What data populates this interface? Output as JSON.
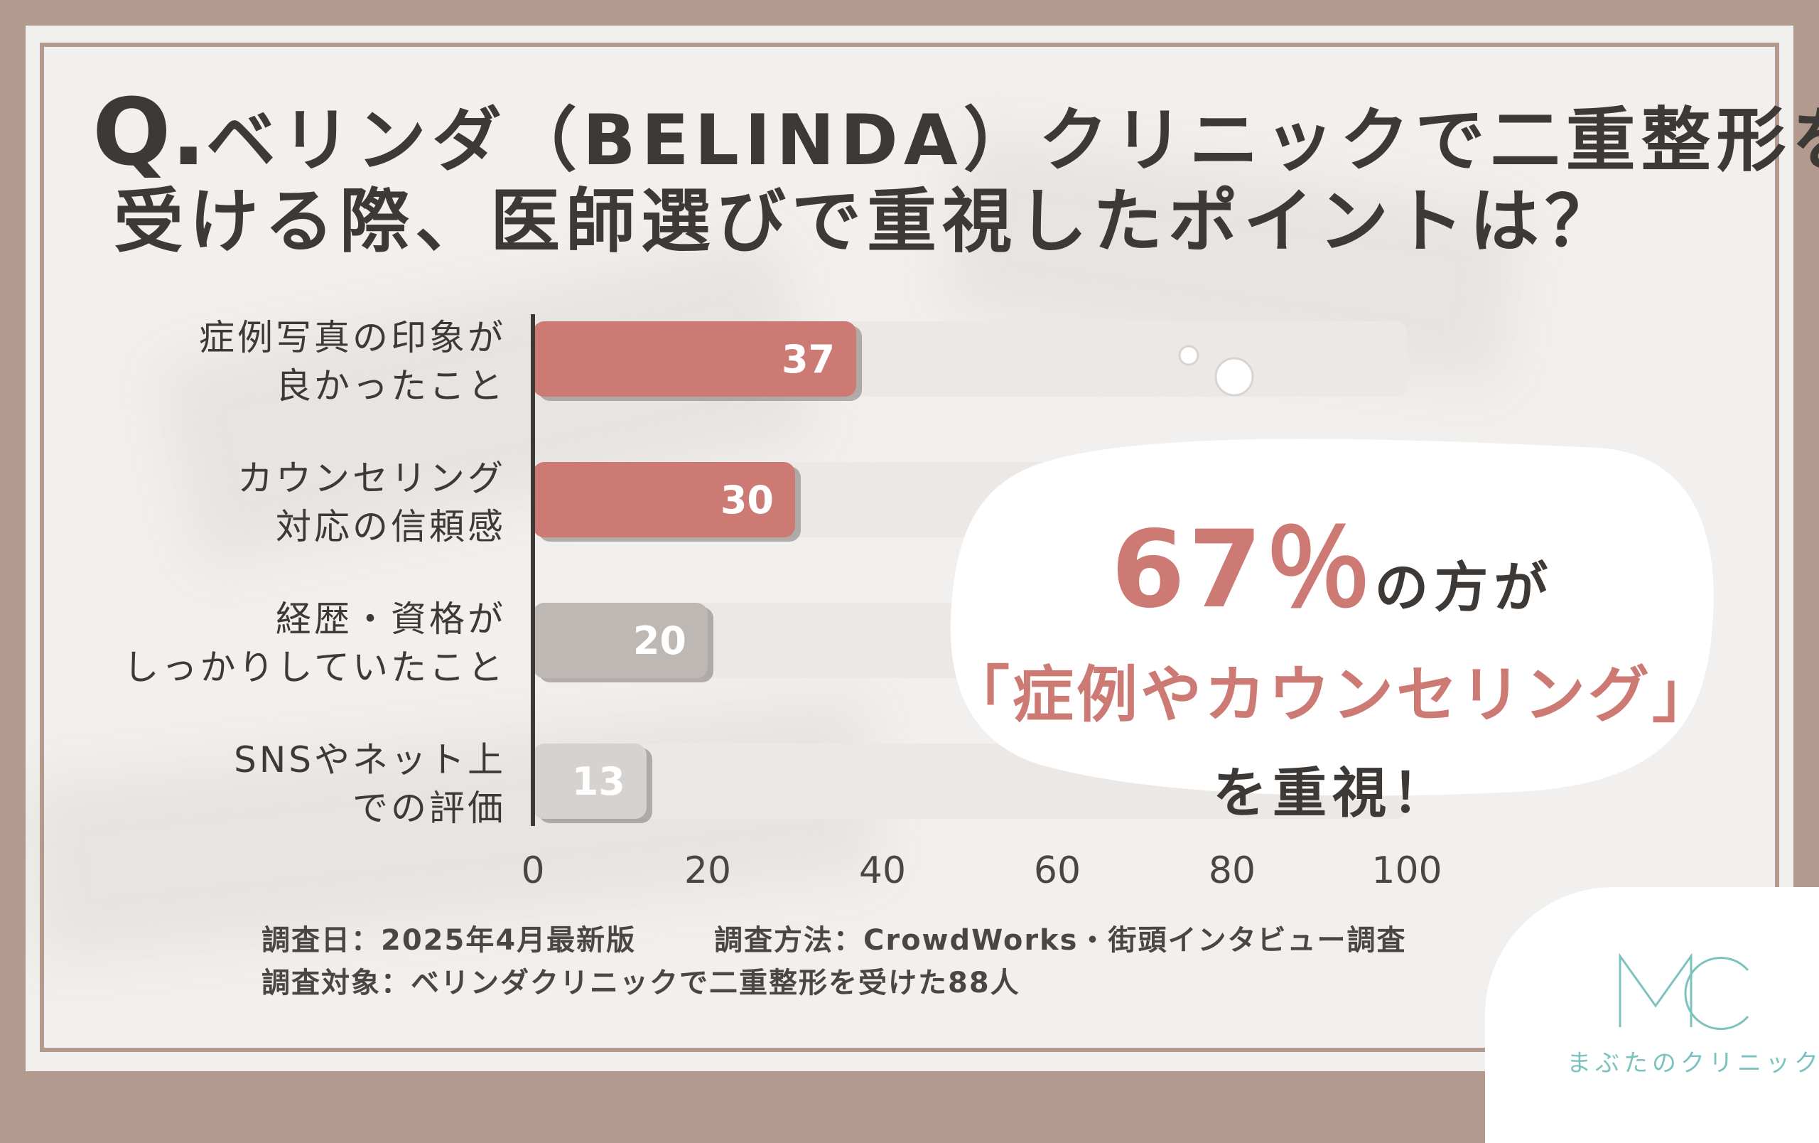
{
  "title": {
    "q_mark": "Q.",
    "line1": "ベリンダ（BELINDA）クリニックで二重整形を",
    "line2": "受ける際、医師選びで重視したポイントは？"
  },
  "chart_data": {
    "type": "bar",
    "orientation": "horizontal",
    "categories": [
      [
        "症例写真の印象が",
        "良かったこと"
      ],
      [
        "カウンセリング",
        "対応の信頼感"
      ],
      [
        "経歴・資格が",
        "しっかりしていたこと"
      ],
      [
        "SNSやネット上",
        "での評価"
      ]
    ],
    "values": [
      37,
      30,
      20,
      13
    ],
    "value_labels": [
      "37",
      "30",
      "20",
      "13"
    ],
    "xlim": [
      0,
      100
    ],
    "xticks": [
      "0",
      "20",
      "40",
      "60",
      "80",
      "100"
    ],
    "bar_colors": [
      "#cd7a74",
      "#cd7a74",
      "#bdb8b4",
      "#d6d2cf"
    ],
    "track_color": "#ebe8e6",
    "grid": false
  },
  "callout": {
    "percent": "67％",
    "after_percent": "の方が",
    "line2": "「症例やカウンセリング」",
    "line3": "を重視！",
    "accent_color": "#cd7a74"
  },
  "footer": {
    "date": "調査日：2025年4月最新版",
    "method": "調査方法：CrowdWorks・街頭インタビュー調査",
    "target": "調査対象：ベリンダクリニックで二重整形を受けた88人"
  },
  "logo": {
    "mark": "MC",
    "name": "まぶたのクリニック",
    "color": "#7cc2be"
  }
}
